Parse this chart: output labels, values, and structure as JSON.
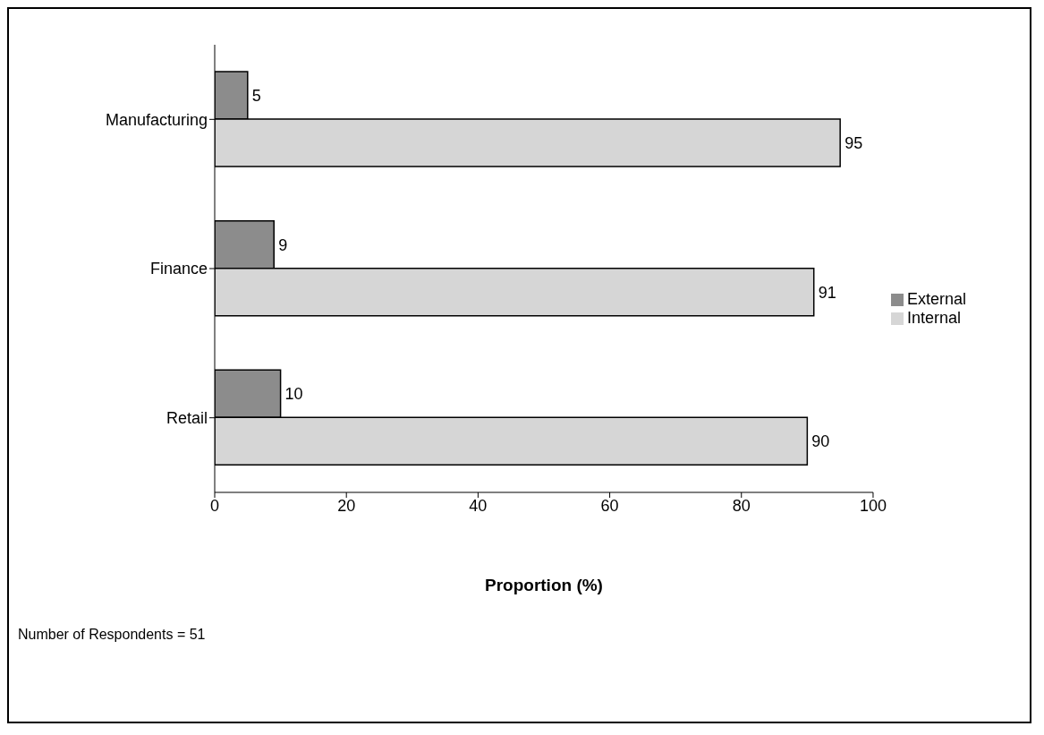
{
  "chart_data": {
    "type": "bar",
    "orientation": "horizontal",
    "categories": [
      "Manufacturing",
      "Finance",
      "Retail"
    ],
    "series": [
      {
        "name": "External",
        "color": "#8c8c8c",
        "values": [
          5,
          9,
          10
        ]
      },
      {
        "name": "Internal",
        "color": "#d6d6d6",
        "values": [
          95,
          91,
          90
        ]
      }
    ],
    "xlim": [
      0,
      100
    ],
    "xticks": [
      0,
      20,
      40,
      60,
      80,
      100
    ],
    "xlabel": "Proportion (%)",
    "data_labels": true,
    "legend": "right",
    "grid": false,
    "annotations": [
      "Number of Respondents = 51"
    ]
  }
}
